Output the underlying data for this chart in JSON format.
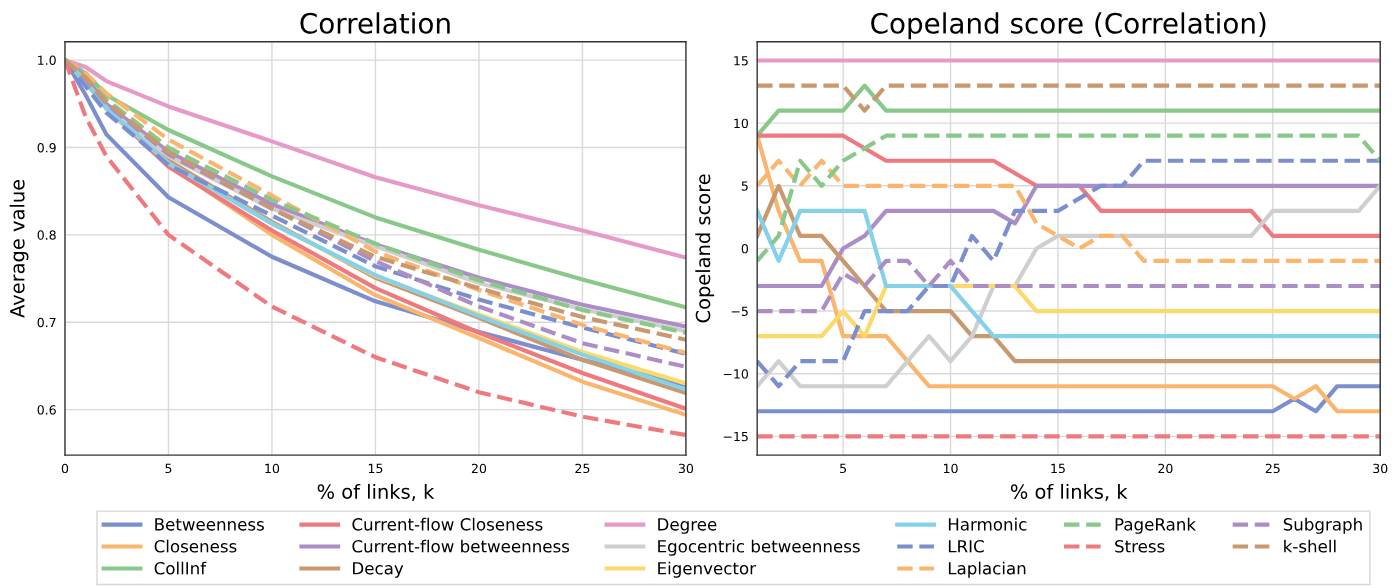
{
  "chart_data": [
    {
      "type": "line",
      "title": "Correlation",
      "xlabel": "% of links, k",
      "ylabel": "Average value",
      "x": [
        0,
        1,
        2,
        5,
        10,
        15,
        20,
        25,
        30
      ],
      "xlim": [
        0,
        30
      ],
      "xticks": [
        0,
        5,
        10,
        15,
        20,
        25,
        30
      ],
      "ylim": [
        0.548,
        1.021
      ],
      "yticks": [
        0.6,
        0.7,
        0.8,
        0.9,
        {
          "value": 1.0,
          "label": "1.0"
        }
      ],
      "grid": true,
      "legend": "bottom",
      "series": [
        {
          "name": "Betweenness",
          "color": "#7b8fce",
          "values": [
            1.0,
            0.96,
            0.915,
            0.843,
            0.775,
            0.724,
            0.689,
            0.657,
            0.628
          ]
        },
        {
          "name": "Closeness",
          "color": "#fbb56d",
          "values": [
            1.0,
            0.975,
            0.945,
            0.88,
            0.8,
            0.731,
            0.682,
            0.632,
            0.594
          ]
        },
        {
          "name": "CollInf",
          "color": "#88c98a",
          "values": [
            1.0,
            0.985,
            0.96,
            0.92,
            0.867,
            0.82,
            0.783,
            0.749,
            0.717
          ]
        },
        {
          "name": "Current-flow Closeness",
          "color": "#ee7a7f",
          "values": [
            1.0,
            0.975,
            0.945,
            0.878,
            0.805,
            0.739,
            0.688,
            0.642,
            0.601
          ]
        },
        {
          "name": "Current-flow betweenness",
          "color": "#ad8dc6",
          "values": [
            1.0,
            0.98,
            0.95,
            0.895,
            0.835,
            0.789,
            0.751,
            0.72,
            0.695
          ]
        },
        {
          "name": "Decay",
          "color": "#c9986e",
          "values": [
            1.0,
            0.978,
            0.945,
            0.885,
            0.815,
            0.751,
            0.705,
            0.657,
            0.619
          ]
        },
        {
          "name": "Degree",
          "color": "#e69ac8",
          "values": [
            1.0,
            0.992,
            0.976,
            0.947,
            0.907,
            0.866,
            0.834,
            0.805,
            0.774
          ]
        },
        {
          "name": "Egocentric betweenness",
          "color": "#cfcfcf",
          "values": [
            1.0,
            0.975,
            0.945,
            0.89,
            0.83,
            0.787,
            0.745,
            0.715,
            0.69
          ]
        },
        {
          "name": "Eigenvector",
          "color": "#fcd96a",
          "values": [
            1.0,
            0.975,
            0.945,
            0.882,
            0.813,
            0.753,
            0.709,
            0.666,
            0.63
          ]
        },
        {
          "name": "Harmonic",
          "color": "#84d1ea",
          "values": [
            1.0,
            0.975,
            0.945,
            0.882,
            0.813,
            0.754,
            0.707,
            0.663,
            0.623
          ]
        },
        {
          "name": "LRIC",
          "color": "#7b8fce",
          "line_style": "dashed",
          "values": [
            1.0,
            0.97,
            0.94,
            0.88,
            0.822,
            0.764,
            0.726,
            0.694,
            0.664
          ]
        },
        {
          "name": "Laplacian",
          "color": "#fbb56d",
          "line_style": "dashed",
          "values": [
            1.0,
            0.985,
            0.962,
            0.909,
            0.845,
            0.781,
            0.737,
            0.697,
            0.665
          ]
        },
        {
          "name": "PageRank",
          "color": "#88c98a",
          "line_style": "dashed",
          "values": [
            1.0,
            0.98,
            0.955,
            0.9,
            0.84,
            0.79,
            0.748,
            0.714,
            0.688
          ]
        },
        {
          "name": "Stress",
          "color": "#ee7a7f",
          "line_style": "dashed",
          "values": [
            1.0,
            0.935,
            0.89,
            0.8,
            0.718,
            0.66,
            0.62,
            0.592,
            0.571
          ]
        },
        {
          "name": "Subgraph",
          "color": "#ad8dc6",
          "line_style": "dashed",
          "values": [
            1.0,
            0.978,
            0.95,
            0.892,
            0.83,
            0.77,
            0.718,
            0.676,
            0.649
          ]
        },
        {
          "name": "k-shell",
          "color": "#c9986e",
          "line_style": "dashed",
          "values": [
            1.0,
            0.98,
            0.952,
            0.895,
            0.83,
            0.775,
            0.739,
            0.706,
            0.68
          ]
        }
      ]
    },
    {
      "type": "line",
      "title": "Copeland score (Correlation)",
      "xlabel": "% of links, k",
      "ylabel": "Copeland score",
      "x": [
        1,
        2,
        3,
        4,
        5,
        6,
        7,
        8,
        9,
        10,
        11,
        12,
        13,
        14,
        15,
        16,
        17,
        18,
        19,
        20,
        21,
        22,
        23,
        24,
        25,
        26,
        27,
        28,
        29,
        30
      ],
      "xlim": [
        1,
        30
      ],
      "xticks": [
        5,
        10,
        15,
        20,
        25,
        30
      ],
      "ylim": [
        -16.5,
        16.5
      ],
      "yticks": [
        {
          "value": -15,
          "label": "−15"
        },
        {
          "value": -10,
          "label": "−10"
        },
        {
          "value": -5,
          "label": "−5"
        },
        0,
        5,
        10,
        15
      ],
      "grid": true,
      "series": [
        {
          "color": "#7b8fce",
          "values": [
            -13,
            -13,
            -13,
            -13,
            -13,
            -13,
            -13,
            -13,
            -13,
            -13,
            -13,
            -13,
            -13,
            -13,
            -13,
            -13,
            -13,
            -13,
            -13,
            -13,
            -13,
            -13,
            -13,
            -13,
            -13,
            -12,
            -13,
            -11,
            -11,
            -11
          ]
        },
        {
          "color": "#fbb56d",
          "values": [
            9,
            3,
            -1,
            -1,
            -7,
            -7,
            -7,
            -9,
            -11,
            -11,
            -11,
            -11,
            -11,
            -11,
            -11,
            -11,
            -11,
            -11,
            -11,
            -11,
            -11,
            -11,
            -11,
            -11,
            -11,
            -12,
            -11,
            -13,
            -13,
            -13
          ]
        },
        {
          "color": "#88c98a",
          "values": [
            9,
            11,
            11,
            11,
            11,
            13,
            11,
            11,
            11,
            11,
            11,
            11,
            11,
            11,
            11,
            11,
            11,
            11,
            11,
            11,
            11,
            11,
            11,
            11,
            11,
            11,
            11,
            11,
            11,
            11
          ]
        },
        {
          "color": "#ee7a7f",
          "values": [
            9,
            9,
            9,
            9,
            9,
            8,
            7,
            7,
            7,
            7,
            7,
            7,
            6,
            5,
            5,
            5,
            3,
            3,
            3,
            3,
            3,
            3,
            3,
            3,
            1,
            1,
            1,
            1,
            1,
            1
          ]
        },
        {
          "color": "#ad8dc6",
          "values": [
            -3,
            -3,
            -3,
            -3,
            0,
            1,
            3,
            3,
            3,
            3,
            3,
            3,
            2,
            5,
            5,
            5,
            5,
            5,
            5,
            5,
            5,
            5,
            5,
            5,
            5,
            5,
            5,
            5,
            5,
            5
          ]
        },
        {
          "color": "#c9986e",
          "values": [
            1,
            5,
            1,
            1,
            -1,
            -3,
            -5,
            -5,
            -5,
            -5,
            -7,
            -7,
            -9,
            -9,
            -9,
            -9,
            -9,
            -9,
            -9,
            -9,
            -9,
            -9,
            -9,
            -9,
            -9,
            -9,
            -9,
            -9,
            -9,
            -9
          ]
        },
        {
          "color": "#e69ac8",
          "values": [
            15,
            15,
            15,
            15,
            15,
            15,
            15,
            15,
            15,
            15,
            15,
            15,
            15,
            15,
            15,
            15,
            15,
            15,
            15,
            15,
            15,
            15,
            15,
            15,
            15,
            15,
            15,
            15,
            15,
            15
          ]
        },
        {
          "color": "#cfcfcf",
          "values": [
            -11,
            -9,
            -11,
            -11,
            -11,
            -11,
            -11,
            -9,
            -7,
            -9,
            -7,
            -3,
            -3,
            0,
            1,
            1,
            1,
            1,
            1,
            1,
            1,
            1,
            1,
            1,
            3,
            3,
            3,
            3,
            3,
            5
          ]
        },
        {
          "color": "#fcd96a",
          "values": [
            -7,
            -7,
            -7,
            -7,
            -5,
            -7,
            -3,
            -3,
            -3,
            -3,
            -3,
            -3,
            -3,
            -5,
            -5,
            -5,
            -5,
            -5,
            -5,
            -5,
            -5,
            -5,
            -5,
            -5,
            -5,
            -5,
            -5,
            -5,
            -5,
            -5
          ]
        },
        {
          "color": "#84d1ea",
          "values": [
            3,
            -1,
            3,
            3,
            3,
            3,
            -3,
            -3,
            -3,
            -3,
            -5,
            -7,
            -7,
            -7,
            -7,
            -7,
            -7,
            -7,
            -7,
            -7,
            -7,
            -7,
            -7,
            -7,
            -7,
            -7,
            -7,
            -7,
            -7,
            -7
          ]
        },
        {
          "color": "#7b8fce",
          "line_style": "dashed",
          "values": [
            -9,
            -11,
            -9,
            -9,
            -9,
            -5,
            -5,
            -5,
            -3,
            -3,
            1,
            -1,
            3,
            3,
            3,
            4,
            5,
            5,
            7,
            7,
            7,
            7,
            7,
            7,
            7,
            7,
            7,
            7,
            7,
            7
          ]
        },
        {
          "color": "#fbb56d",
          "line_style": "dashed",
          "values": [
            5,
            7,
            5,
            7,
            5,
            5,
            5,
            5,
            5,
            5,
            5,
            5,
            5,
            2,
            1,
            0,
            1,
            1,
            -1,
            -1,
            -1,
            -1,
            -1,
            -1,
            -1,
            -1,
            -1,
            -1,
            -1,
            -1
          ]
        },
        {
          "color": "#88c98a",
          "line_style": "dashed",
          "values": [
            -1,
            1,
            7,
            5,
            7,
            8,
            9,
            9,
            9,
            9,
            9,
            9,
            9,
            9,
            9,
            9,
            9,
            9,
            9,
            9,
            9,
            9,
            9,
            9,
            9,
            9,
            9,
            9,
            9,
            7
          ]
        },
        {
          "color": "#ee7a7f",
          "line_style": "dashed",
          "values": [
            -15,
            -15,
            -15,
            -15,
            -15,
            -15,
            -15,
            -15,
            -15,
            -15,
            -15,
            -15,
            -15,
            -15,
            -15,
            -15,
            -15,
            -15,
            -15,
            -15,
            -15,
            -15,
            -15,
            -15,
            -15,
            -15,
            -15,
            -15,
            -15,
            -15
          ]
        },
        {
          "color": "#ad8dc6",
          "line_style": "dashed",
          "values": [
            -5,
            -5,
            -5,
            -5,
            -2,
            -3,
            -1,
            -1,
            -3,
            -1,
            -3,
            -3,
            -3,
            -3,
            -3,
            -3,
            -3,
            -3,
            -3,
            -3,
            -3,
            -3,
            -3,
            -3,
            -3,
            -3,
            -3,
            -3,
            -3,
            -3
          ]
        },
        {
          "color": "#c9986e",
          "line_style": "dashed",
          "values": [
            13,
            13,
            13,
            13,
            13,
            11,
            13,
            13,
            13,
            13,
            13,
            13,
            13,
            13,
            13,
            13,
            13,
            13,
            13,
            13,
            13,
            13,
            13,
            13,
            13,
            13,
            13,
            13,
            13,
            13
          ]
        }
      ]
    }
  ]
}
